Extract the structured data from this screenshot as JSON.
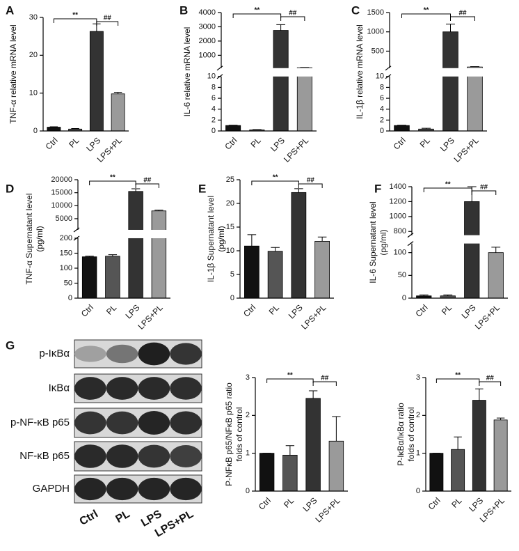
{
  "chart_data": [
    {
      "type": "bar",
      "panel": "A",
      "ylabel": [
        "TNF-α relative mRNA level"
      ],
      "categories": [
        "Ctrl",
        "PL",
        "LPS",
        "LPS+PL"
      ],
      "values": [
        1,
        0.5,
        26.3,
        9.8
      ],
      "errors": [
        0.1,
        0.15,
        2,
        0.4
      ],
      "colors": [
        "#111111",
        "#555555",
        "#333333",
        "#9a9a9a"
      ],
      "ylim": [
        0,
        30
      ],
      "yticks": [
        0,
        10,
        20,
        30
      ],
      "annotations": [
        {
          "text": "**",
          "between": [
            "Ctrl",
            "LPS"
          ]
        },
        {
          "text": "##",
          "between": [
            "LPS",
            "LPS+PL"
          ]
        }
      ]
    },
    {
      "type": "bar",
      "panel": "B",
      "ylabel": [
        "IL-6 relative mRNA level"
      ],
      "categories": [
        "Ctrl",
        "PL",
        "LPS",
        "LPS+PL"
      ],
      "values": [
        1,
        0.2,
        2750,
        130
      ],
      "errors": [
        0.05,
        0.05,
        400,
        15
      ],
      "colors": [
        "#111111",
        "#555555",
        "#333333",
        "#9a9a9a"
      ],
      "y_segments": [
        {
          "ylim": [
            0,
            10
          ],
          "yticks": [
            0,
            2,
            4,
            6,
            8,
            10
          ]
        },
        {
          "ylim": [
            100,
            4000
          ],
          "yticks": [
            1000,
            2000,
            3000,
            4000
          ]
        }
      ],
      "annotations": [
        {
          "text": "**",
          "between": [
            "Ctrl",
            "LPS"
          ]
        },
        {
          "text": "##",
          "between": [
            "LPS",
            "LPS+PL"
          ]
        }
      ]
    },
    {
      "type": "bar",
      "panel": "C",
      "ylabel": [
        "IL-1β relative mRNA level"
      ],
      "categories": [
        "Ctrl",
        "PL",
        "LPS",
        "LPS+PL"
      ],
      "values": [
        1,
        0.35,
        1000,
        90
      ],
      "errors": [
        0.05,
        0.15,
        200,
        10
      ],
      "colors": [
        "#111111",
        "#555555",
        "#333333",
        "#9a9a9a"
      ],
      "y_segments": [
        {
          "ylim": [
            0,
            10
          ],
          "yticks": [
            0,
            2,
            4,
            6,
            8,
            10
          ]
        },
        {
          "ylim": [
            60,
            1500
          ],
          "yticks": [
            500,
            1000,
            1500
          ]
        }
      ],
      "annotations": [
        {
          "text": "**",
          "between": [
            "Ctrl",
            "LPS"
          ]
        },
        {
          "text": "##",
          "between": [
            "LPS",
            "LPS+PL"
          ]
        }
      ]
    },
    {
      "type": "bar",
      "panel": "D",
      "ylabel": [
        "TNF-α Supernatant level",
        "(pg/ml)"
      ],
      "categories": [
        "Ctrl",
        "PL",
        "LPS",
        "LPS+PL"
      ],
      "values": [
        138,
        140,
        15500,
        8000
      ],
      "errors": [
        2,
        5,
        1000,
        300
      ],
      "colors": [
        "#111111",
        "#555555",
        "#333333",
        "#9a9a9a"
      ],
      "y_segments": [
        {
          "ylim": [
            0,
            200
          ],
          "yticks": [
            0,
            50,
            100,
            150,
            200
          ]
        },
        {
          "ylim": [
            700,
            20000
          ],
          "yticks": [
            5000,
            10000,
            15000,
            20000
          ]
        }
      ],
      "annotations": [
        {
          "text": "**",
          "between": [
            "Ctrl",
            "LPS"
          ]
        },
        {
          "text": "##",
          "between": [
            "LPS",
            "LPS+PL"
          ]
        }
      ]
    },
    {
      "type": "bar",
      "panel": "E",
      "ylabel": [
        "IL-1β Supernatant level",
        "(pg/ml)"
      ],
      "categories": [
        "Ctrl",
        "PL",
        "LPS",
        "LPS+PL"
      ],
      "values": [
        11,
        9.9,
        22.3,
        12
      ],
      "errors": [
        2.4,
        0.8,
        0.8,
        0.9
      ],
      "colors": [
        "#111111",
        "#555555",
        "#333333",
        "#9a9a9a"
      ],
      "ylim": [
        0,
        25
      ],
      "yticks": [
        0,
        5,
        10,
        15,
        20,
        25
      ],
      "annotations": [
        {
          "text": "**",
          "between": [
            "Ctrl",
            "LPS"
          ]
        },
        {
          "text": "##",
          "between": [
            "LPS",
            "LPS+PL"
          ]
        }
      ]
    },
    {
      "type": "bar",
      "panel": "F",
      "ylabel": [
        "IL-6 Supernatant level",
        "(pg/ml)"
      ],
      "categories": [
        "Ctrl",
        "PL",
        "LPS",
        "LPS+PL"
      ],
      "values": [
        5,
        5,
        1200,
        100
      ],
      "errors": [
        2,
        2,
        200,
        12
      ],
      "colors": [
        "#111111",
        "#555555",
        "#333333",
        "#9a9a9a"
      ],
      "y_segments": [
        {
          "ylim": [
            0,
            120
          ],
          "yticks": [
            0,
            50,
            100
          ]
        },
        {
          "ylim": [
            750,
            1400
          ],
          "yticks": [
            800,
            1000,
            1200,
            1400
          ]
        }
      ],
      "annotations": [
        {
          "text": "**",
          "between": [
            "Ctrl",
            "LPS"
          ]
        },
        {
          "text": "##",
          "between": [
            "LPS",
            "LPS+PL"
          ]
        }
      ]
    },
    {
      "type": "bar",
      "ylabel": [
        "P-NFκB p65/NFκB p65 ratio",
        "folds of control"
      ],
      "categories": [
        "Ctrl",
        "PL",
        "LPS",
        "LPS+PL"
      ],
      "values": [
        1,
        0.95,
        2.45,
        1.32
      ],
      "errors": [
        0,
        0.25,
        0.2,
        0.65
      ],
      "colors": [
        "#111111",
        "#555555",
        "#333333",
        "#9a9a9a"
      ],
      "ylim": [
        0,
        3
      ],
      "yticks": [
        0,
        1,
        2,
        3
      ],
      "annotations": [
        {
          "text": "**",
          "between": [
            "Ctrl",
            "LPS"
          ]
        },
        {
          "text": "##",
          "between": [
            "LPS",
            "LPS+PL"
          ]
        }
      ]
    },
    {
      "type": "bar",
      "ylabel": [
        "P-IκBα/IκBα ratio",
        "folds of control"
      ],
      "categories": [
        "Ctrl",
        "PL",
        "LPS",
        "LPS+PL"
      ],
      "values": [
        1,
        1.1,
        2.4,
        1.88
      ],
      "errors": [
        0,
        0.33,
        0.3,
        0.05
      ],
      "colors": [
        "#111111",
        "#555555",
        "#333333",
        "#9a9a9a"
      ],
      "ylim": [
        0,
        3
      ],
      "yticks": [
        0,
        1,
        2,
        3
      ],
      "annotations": [
        {
          "text": "**",
          "between": [
            "Ctrl",
            "LPS"
          ]
        },
        {
          "text": "##",
          "between": [
            "LPS",
            "LPS+PL"
          ]
        }
      ]
    }
  ],
  "blot": {
    "panel": "G",
    "rows": [
      "p-IκBα",
      "IκBα",
      "p-NF-κB p65",
      "NF-κB p65",
      "GAPDH"
    ],
    "lanes": [
      "Ctrl",
      "PL",
      "LPS",
      "LPS+PL"
    ]
  }
}
